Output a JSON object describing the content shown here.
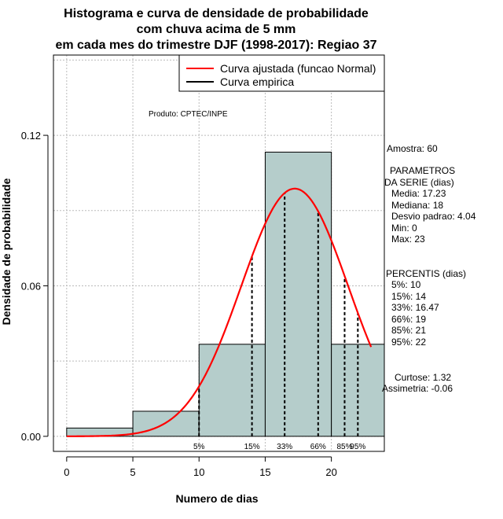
{
  "chart_data": {
    "type": "bar",
    "title_lines": [
      "Histograma e curva de densidade de probabilidade",
      "com chuva acima de 5 mm",
      "em cada mes do trimestre DJF (1998-2017): Regiao 37"
    ],
    "xlabel": "Numero de dias",
    "ylabel": "Densidade de probabilidade",
    "xlim": [
      -1,
      24
    ],
    "ylim": [
      -0.006,
      0.152
    ],
    "xticks": [
      0,
      5,
      10,
      15,
      20
    ],
    "xtick_labels": [
      "0",
      "5",
      "10",
      "15",
      "20"
    ],
    "yticks": [
      0.0,
      0.06,
      0.12
    ],
    "ytick_labels": [
      "0.00",
      "0.06",
      "0.12"
    ],
    "grid": true,
    "histogram_bins": [
      {
        "start": 0,
        "end": 5,
        "density": 0.0033
      },
      {
        "start": 5,
        "end": 10,
        "density": 0.01
      },
      {
        "start": 10,
        "end": 15,
        "density": 0.0367
      },
      {
        "start": 15,
        "end": 20,
        "density": 0.1133
      },
      {
        "start": 20,
        "end": 24,
        "density": 0.0367
      }
    ],
    "normal_curve": {
      "mean": 17.23,
      "sd": 4.04,
      "from": 0,
      "to": 23,
      "color": "#ff0000"
    },
    "bar_fill": "#b5cdcb",
    "percentile_lines": [
      {
        "x": 10,
        "label": "5%"
      },
      {
        "x": 14,
        "label": "15%"
      },
      {
        "x": 16.47,
        "label": "33%"
      },
      {
        "x": 19,
        "label": "66%"
      },
      {
        "x": 21,
        "label": "85%"
      },
      {
        "x": 22,
        "label": "95%"
      }
    ],
    "legend": [
      {
        "label": "Curva ajustada (funcao Normal)",
        "color": "#ff0000"
      },
      {
        "label": "Curva empirica",
        "color": "#000000"
      }
    ],
    "legend_position": "top-right",
    "annotation": "Produto: CPTEC/INPE"
  },
  "side_panel": {
    "amostra": "Amostra: 60",
    "params_title_1": "PARAMETROS",
    "params_title_2": "DA SERIE (dias)",
    "media": "Media: 17.23",
    "mediana": "Mediana: 18",
    "desvio": "Desvio padrao: 4.04",
    "min": "Min: 0",
    "max": "Max: 23",
    "percentis_title": "PERCENTIS (dias)",
    "p5": "5%: 10",
    "p15": "15%: 14",
    "p33": "33%: 16.47",
    "p66": "66%: 19",
    "p85": "85%: 21",
    "p95": "95%: 22",
    "curtose": "Curtose: 1.32",
    "assimetria": "Assimetria: -0.06"
  }
}
